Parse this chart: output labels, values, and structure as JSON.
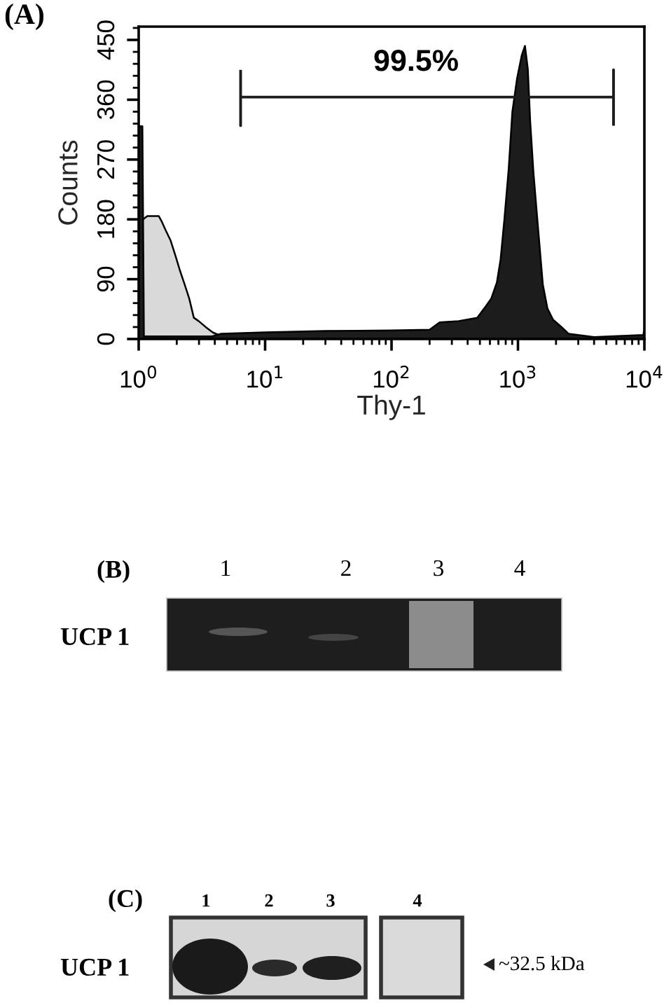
{
  "chart_data": {
    "type": "area",
    "xlabel": "Thy-1",
    "ylabel": "Counts",
    "log": "x",
    "xlim": [
      1,
      10000
    ],
    "xticks": [
      {
        "value": 1,
        "label": "10$^{0}$"
      },
      {
        "value": 10,
        "label": "10$^{1}$"
      },
      {
        "value": 100,
        "label": "10$^{2}$"
      },
      {
        "value": 1000,
        "label": "10$^{3}$"
      },
      {
        "value": 10000,
        "label": "10$^{4}$"
      }
    ],
    "ylim": [
      0,
      470
    ],
    "yticks": [
      0,
      90,
      180,
      270,
      360,
      450
    ],
    "series": [
      {
        "color": "#d9d9d9",
        "x": [
          1,
          1.17,
          1.44,
          1.51,
          1.64,
          1.79,
          1.94,
          2.12,
          2.31,
          2.51,
          2.73,
          2.98,
          3.39,
          3.85,
          4.4,
          4.8
        ],
        "values": [
          175,
          185,
          185,
          178,
          163,
          148,
          127,
          103,
          82,
          61,
          32,
          27,
          18,
          10,
          5,
          0
        ]
      },
      {
        "color": "#1c1c1c",
        "x": [
          1,
          1.07,
          1.1,
          2,
          3.8,
          4.5,
          10,
          30,
          100,
          200,
          240,
          339,
          476,
          541,
          615,
          681,
          729,
          781,
          843,
          903,
          984,
          1072,
          1136,
          1197,
          1249,
          1325,
          1443,
          1573,
          1710,
          1896,
          2210,
          2510,
          4000,
          9800,
          10000
        ],
        "values": [
          320,
          320,
          4,
          4,
          4,
          8,
          10,
          12,
          13,
          14,
          25,
          27,
          32,
          46,
          61,
          85,
          120,
          180,
          254,
          342,
          392,
          427,
          441,
          406,
          328,
          251,
          166,
          82,
          46,
          29,
          18,
          8,
          3,
          6,
          15
        ]
      },
      {
        "type": "line",
        "color": "#1c1c1c",
        "x": [
          6.4,
          6.4,
          6.4,
          5700,
          5700,
          5700
        ],
        "values": [
          405,
          321,
          364,
          364,
          405,
          321
        ]
      }
    ],
    "annotations": [
      "(A)",
      "99.5%",
      "(B)",
      "1",
      "2",
      "3",
      "4",
      "UCP 1",
      "(C)",
      "1",
      "2",
      "3",
      "4",
      "UCP 1",
      "~32.5 kDa"
    ]
  }
}
